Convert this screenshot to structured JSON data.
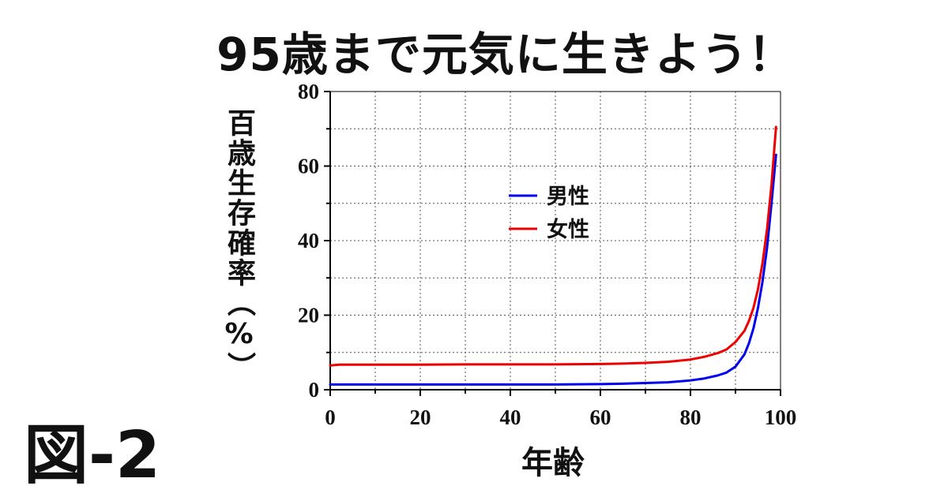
{
  "title": "95歳まで元気に生きよう！",
  "figure_label": "図-2",
  "chart_data": {
    "type": "line",
    "xlabel": "年齢",
    "ylabel": "百歳生存確率（%）",
    "xlim": [
      0,
      100
    ],
    "ylim": [
      0,
      80
    ],
    "x_ticks": [
      0,
      20,
      40,
      60,
      80,
      100
    ],
    "y_ticks": [
      0,
      20,
      40,
      60,
      80
    ],
    "grid": true,
    "legend_position": "center",
    "series": [
      {
        "name": "男性",
        "color": "#0000ee",
        "x": [
          0,
          10,
          20,
          30,
          40,
          50,
          60,
          65,
          70,
          75,
          80,
          83,
          86,
          88,
          90,
          92,
          93,
          94,
          95,
          96,
          97,
          98,
          99
        ],
        "y": [
          1.4,
          1.4,
          1.4,
          1.4,
          1.4,
          1.4,
          1.5,
          1.6,
          1.8,
          2.0,
          2.5,
          3.0,
          3.8,
          4.6,
          6.2,
          9.5,
          12.5,
          16.5,
          22,
          29,
          38,
          50,
          63
        ]
      },
      {
        "name": "女性",
        "color": "#ee0000",
        "x": [
          0,
          2,
          10,
          20,
          30,
          40,
          50,
          60,
          65,
          70,
          75,
          80,
          83,
          86,
          88,
          90,
          92,
          93,
          94,
          95,
          96,
          97,
          98,
          99
        ],
        "y": [
          6.5,
          6.7,
          6.7,
          6.7,
          6.8,
          6.8,
          6.8,
          6.9,
          7.0,
          7.2,
          7.5,
          8.1,
          8.8,
          9.8,
          10.8,
          12.8,
          15.8,
          18.5,
          22,
          27,
          34,
          43,
          55,
          70.5
        ]
      }
    ]
  }
}
